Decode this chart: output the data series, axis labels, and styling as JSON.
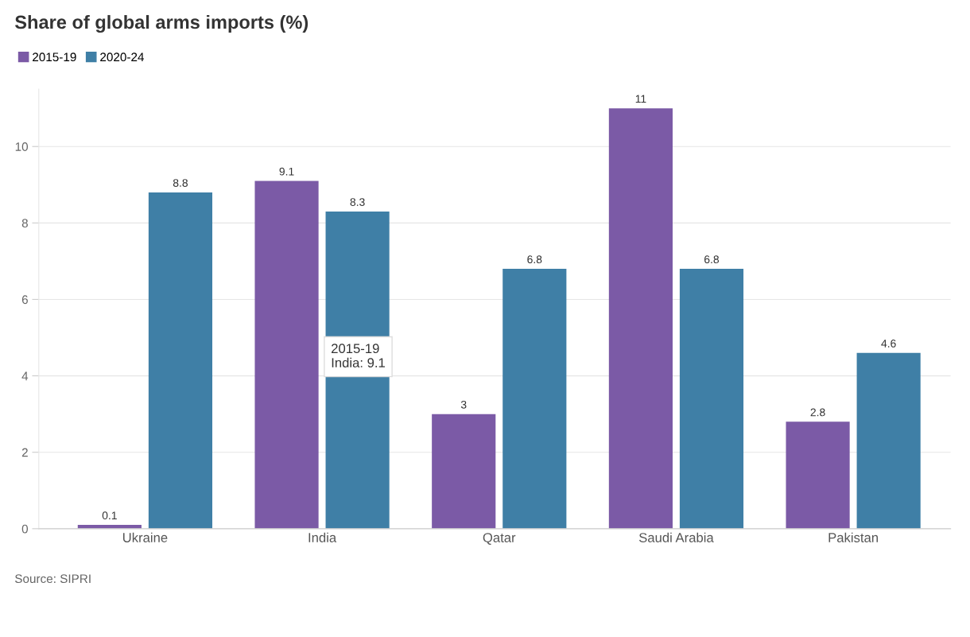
{
  "chart_data": {
    "type": "bar",
    "title": "Share of global arms imports (%)",
    "categories": [
      "Ukraine",
      "India",
      "Qatar",
      "Saudi Arabia",
      "Pakistan"
    ],
    "series": [
      {
        "name": "2015-19",
        "color": "#7b5aa6",
        "values": [
          0.1,
          9.1,
          3,
          11,
          2.8
        ]
      },
      {
        "name": "2020-24",
        "color": "#3f7fa6",
        "values": [
          8.8,
          8.3,
          6.8,
          6.8,
          4.6
        ]
      }
    ],
    "ylim": [
      0,
      11.5
    ],
    "yticks": [
      0,
      2,
      4,
      6,
      8,
      10
    ],
    "grid": "y",
    "legend": "top left",
    "data_labels": true,
    "annotations": [
      {
        "text": "2015-19\nIndia: 9.1",
        "x": "India",
        "y": 4.5
      },
      "Source: SIPRI"
    ]
  }
}
